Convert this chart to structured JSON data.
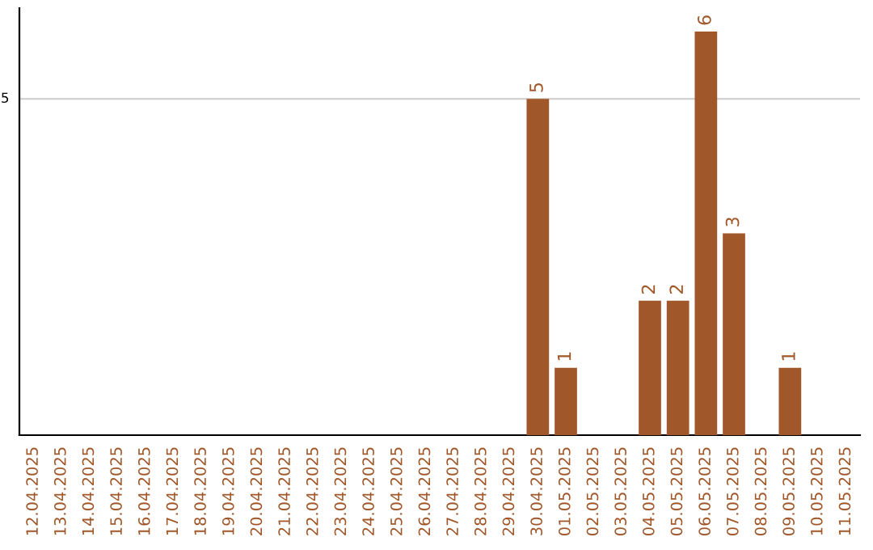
{
  "chart_data": {
    "type": "bar",
    "categories": [
      "12.04.2025",
      "13.04.2025",
      "14.04.2025",
      "15.04.2025",
      "16.04.2025",
      "17.04.2025",
      "18.04.2025",
      "19.04.2025",
      "20.04.2025",
      "21.04.2025",
      "22.04.2025",
      "23.04.2025",
      "24.04.2025",
      "25.04.2025",
      "26.04.2025",
      "27.04.2025",
      "28.04.2025",
      "29.04.2025",
      "30.04.2025",
      "01.05.2025",
      "02.05.2025",
      "03.05.2025",
      "04.05.2025",
      "05.05.2025",
      "06.05.2025",
      "07.05.2025",
      "08.05.2025",
      "09.05.2025",
      "10.05.2025",
      "11.05.2025"
    ],
    "values": [
      null,
      null,
      null,
      null,
      null,
      null,
      null,
      null,
      null,
      null,
      null,
      null,
      null,
      null,
      null,
      null,
      null,
      null,
      5,
      1,
      null,
      null,
      2,
      2,
      6,
      3,
      null,
      1,
      null,
      null
    ],
    "color": "#a0582a",
    "ylim": [
      0,
      6.35
    ],
    "ref_lines": [
      {
        "axis": "y",
        "value": 5,
        "label": "5",
        "color": "#cccccc"
      }
    ],
    "data_labels": true
  }
}
